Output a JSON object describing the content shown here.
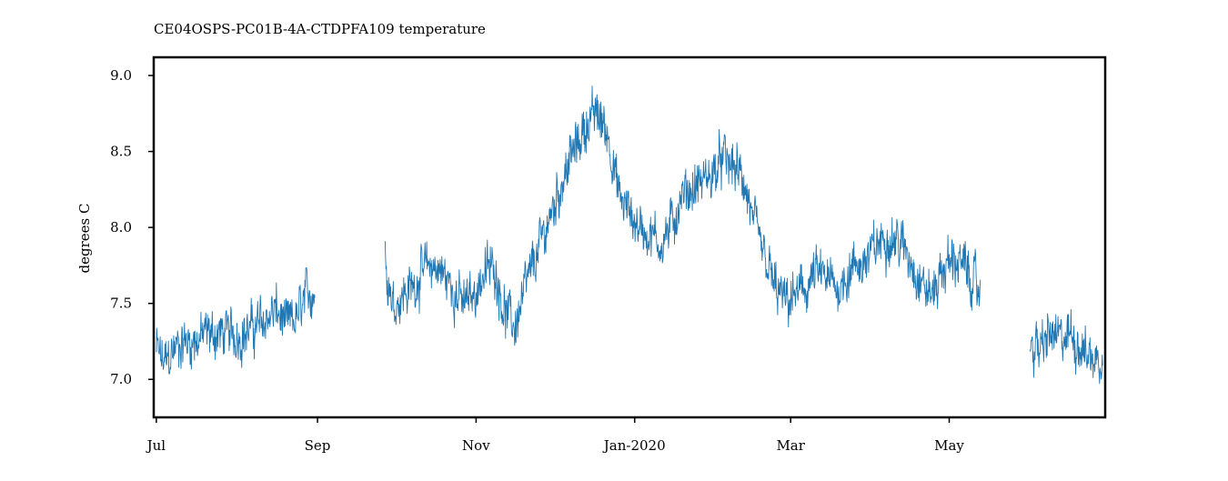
{
  "chart_data": {
    "type": "line",
    "title": "CE04OSPS-PC01B-4A-CTDPFA109 temperature",
    "xlabel": "",
    "ylabel": "degrees C",
    "x_range": [
      "2019-06-30",
      "2020-06-30"
    ],
    "ylim": [
      6.75,
      9.12
    ],
    "y_ticks": [
      7.0,
      7.5,
      8.0,
      8.5,
      9.0
    ],
    "y_tick_labels": [
      "7.0",
      "7.5",
      "8.0",
      "8.5",
      "9.0"
    ],
    "x_ticks": [
      "2019-07-01",
      "2019-09-01",
      "2019-11-01",
      "2020-01-01",
      "2020-03-01",
      "2020-05-01"
    ],
    "x_tick_labels": [
      "Jul",
      "Sep",
      "Nov",
      "Jan-2020",
      "Mar",
      "May"
    ],
    "grid": false,
    "legend": "none",
    "series_color": "#1f77b4",
    "series": [
      {
        "x": [
          "2019-07-01",
          "2019-07-04",
          "2019-07-08",
          "2019-07-12",
          "2019-07-16",
          "2019-07-20",
          "2019-07-24",
          "2019-07-27",
          "2019-08-04",
          "2019-08-08",
          "2019-08-12",
          "2019-08-16",
          "2019-08-20",
          "2019-08-24",
          "2019-08-28",
          "2019-08-31",
          "2019-09-27",
          "2019-09-30",
          "2019-10-03",
          "2019-10-07",
          "2019-10-11",
          "2019-10-15",
          "2019-10-19",
          "2019-10-23",
          "2019-10-27",
          "2019-10-31",
          "2019-11-04",
          "2019-11-08",
          "2019-11-12",
          "2019-11-16",
          "2019-11-20",
          "2019-11-24",
          "2019-11-28",
          "2019-12-02",
          "2019-12-06",
          "2019-12-10",
          "2019-12-14",
          "2019-12-18",
          "2019-12-22",
          "2019-12-26",
          "2019-12-30",
          "2020-01-03",
          "2020-01-07",
          "2020-01-11",
          "2020-01-15",
          "2020-01-19",
          "2020-01-23",
          "2020-01-27",
          "2020-01-31",
          "2020-02-04",
          "2020-02-08",
          "2020-02-12",
          "2020-02-16",
          "2020-02-20",
          "2020-02-24",
          "2020-02-28",
          "2020-03-03",
          "2020-03-07",
          "2020-03-11",
          "2020-03-15",
          "2020-03-19",
          "2020-03-23",
          "2020-03-27",
          "2020-03-31",
          "2020-04-04",
          "2020-04-08",
          "2020-04-12",
          "2020-04-16",
          "2020-04-20",
          "2020-04-24",
          "2020-04-28",
          "2020-05-02",
          "2020-05-06",
          "2020-05-10",
          "2020-05-13",
          "2020-06-01",
          "2020-06-05",
          "2020-06-09",
          "2020-06-13",
          "2020-06-17",
          "2020-06-21",
          "2020-06-25",
          "2020-06-29"
        ],
        "y": [
          7.2,
          7.1,
          7.2,
          7.25,
          7.25,
          7.3,
          7.3,
          7.3,
          7.3,
          7.35,
          7.4,
          7.45,
          7.35,
          7.4,
          7.55,
          7.6,
          7.8,
          7.5,
          7.55,
          7.6,
          7.7,
          7.75,
          7.7,
          7.6,
          7.5,
          7.55,
          7.7,
          7.75,
          7.45,
          7.35,
          7.6,
          7.8,
          8.0,
          8.2,
          8.4,
          8.55,
          8.7,
          8.75,
          8.6,
          8.2,
          8.1,
          8.0,
          7.95,
          7.9,
          8.0,
          8.2,
          8.25,
          8.3,
          8.35,
          8.45,
          8.4,
          8.3,
          8.0,
          7.8,
          7.6,
          7.5,
          7.55,
          7.6,
          7.7,
          7.65,
          7.6,
          7.7,
          7.75,
          7.8,
          7.9,
          7.95,
          7.9,
          7.8,
          7.65,
          7.55,
          7.7,
          7.8,
          7.75,
          7.65,
          7.55,
          7.25,
          7.2,
          7.3,
          7.25,
          7.3,
          7.2,
          7.15,
          7.1
        ]
      }
    ]
  }
}
